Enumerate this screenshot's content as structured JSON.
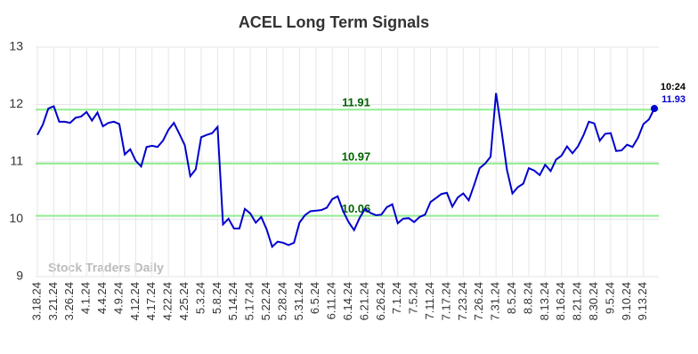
{
  "chart_data": {
    "type": "line",
    "title": "ACEL Long Term Signals",
    "categories": [
      "3.18.24",
      null,
      null,
      "3.21.24",
      null,
      null,
      "3.26.24",
      null,
      null,
      "4.1.24",
      null,
      null,
      "4.4.24",
      null,
      null,
      "4.9.24",
      null,
      null,
      "4.12.24",
      null,
      null,
      "4.17.24",
      null,
      null,
      "4.22.24",
      null,
      null,
      "4.25.24",
      null,
      null,
      "5.3.24",
      null,
      null,
      "5.8.24",
      null,
      null,
      "5.14.24",
      null,
      null,
      "5.17.24",
      null,
      null,
      "5.22.24",
      null,
      null,
      "5.28.24",
      null,
      null,
      "5.31.24",
      null,
      null,
      "6.5.24",
      null,
      null,
      "6.11.24",
      null,
      null,
      "6.14.24",
      null,
      null,
      "6.21.24",
      null,
      null,
      "6.26.24",
      null,
      null,
      "7.1.24",
      null,
      null,
      "7.5.24",
      null,
      null,
      "7.11.24",
      null,
      null,
      "7.17.24",
      null,
      null,
      "7.23.24",
      null,
      null,
      "7.26.24",
      null,
      null,
      "7.31.24",
      null,
      null,
      "8.5.24",
      null,
      null,
      "8.8.24",
      null,
      null,
      "8.13.24",
      null,
      null,
      "8.16.24",
      null,
      null,
      "8.21.24",
      null,
      null,
      "8.30.24",
      null,
      null,
      "9.5.24",
      null,
      null,
      "9.10.24",
      null,
      null,
      "9.13.24",
      null,
      null
    ],
    "values": [
      11.47,
      11.65,
      11.93,
      11.97,
      11.7,
      11.7,
      11.68,
      11.77,
      11.79,
      11.87,
      11.72,
      11.86,
      11.62,
      11.68,
      11.7,
      11.66,
      11.13,
      11.22,
      11.02,
      10.92,
      11.26,
      11.28,
      11.26,
      11.37,
      11.56,
      11.68,
      11.49,
      11.29,
      10.75,
      10.87,
      11.43,
      11.47,
      11.5,
      11.61,
      9.91,
      10.01,
      9.84,
      9.84,
      10.18,
      10.1,
      9.94,
      10.04,
      9.82,
      9.52,
      9.61,
      9.59,
      9.55,
      9.59,
      9.94,
      10.07,
      10.14,
      10.15,
      10.16,
      10.2,
      10.35,
      10.4,
      10.14,
      9.95,
      9.81,
      10.02,
      10.18,
      10.11,
      10.07,
      10.08,
      10.21,
      10.26,
      9.93,
      10.01,
      10.02,
      9.95,
      10.04,
      10.08,
      10.3,
      10.37,
      10.44,
      10.46,
      10.22,
      10.38,
      10.45,
      10.33,
      10.6,
      10.89,
      10.97,
      11.09,
      12.2,
      11.55,
      10.86,
      10.45,
      10.56,
      10.62,
      10.89,
      10.85,
      10.77,
      10.95,
      10.84,
      11.04,
      11.11,
      11.27,
      11.15,
      11.27,
      11.46,
      11.7,
      11.67,
      11.37,
      11.49,
      11.5,
      11.19,
      11.2,
      11.3,
      11.26,
      11.42,
      11.66,
      11.74,
      11.93
    ],
    "color": "#0000cc",
    "ylim": [
      9,
      13
    ],
    "yticks": [
      9,
      10,
      11,
      12,
      13
    ],
    "grid": true,
    "signal_lines": [
      11.91,
      10.97,
      10.06
    ],
    "signal_color": "#90ee90",
    "last_time": "10:24",
    "watermark": "Stock Traders Daily"
  }
}
